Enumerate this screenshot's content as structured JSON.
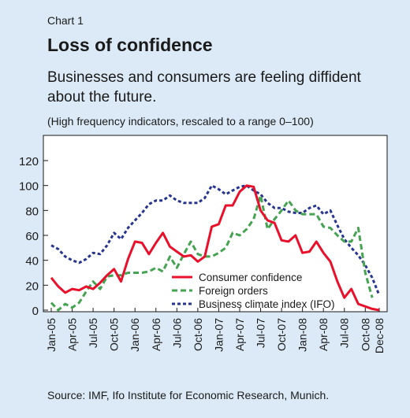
{
  "header": {
    "label": "Chart 1",
    "title": "Loss of confidence",
    "subtitle": "Businesses and consumers are feeling diffident about the future.",
    "note": "(High frequency indicators, rescaled to a range 0–100)"
  },
  "footer": {
    "source": "Source: IMF, Ifo Institute for Economic Research, Munich."
  },
  "colors": {
    "background": "#dbeaf6",
    "plot_bg": "#ffffff",
    "consumer": "#e8102a",
    "foreign": "#45a352",
    "ifo": "#27358f"
  },
  "chart_data": {
    "type": "line",
    "x": [
      "Jan-05",
      "Feb-05",
      "Mar-05",
      "Apr-05",
      "May-05",
      "Jun-05",
      "Jul-05",
      "Aug-05",
      "Sep-05",
      "Oct-05",
      "Nov-05",
      "Dec-05",
      "Jan-06",
      "Feb-06",
      "Mar-06",
      "Apr-06",
      "May-06",
      "Jun-06",
      "Jul-06",
      "Aug-06",
      "Sep-06",
      "Oct-06",
      "Nov-06",
      "Dec-06",
      "Jan-07",
      "Feb-07",
      "Mar-07",
      "Apr-07",
      "May-07",
      "Jun-07",
      "Jul-07",
      "Aug-07",
      "Sep-07",
      "Oct-07",
      "Nov-07",
      "Dec-07",
      "Jan-08",
      "Feb-08",
      "Mar-08",
      "Apr-08",
      "May-08",
      "Jun-08",
      "Jul-08",
      "Aug-08",
      "Sep-08",
      "Oct-08",
      "Nov-08",
      "Dec-08"
    ],
    "xticks": [
      "Jan-05",
      "Apr-05",
      "Jul-05",
      "Oct-05",
      "Jan-06",
      "Apr-06",
      "Jul-06",
      "Oct-06",
      "Jan-07",
      "Apr-07",
      "Jul-07",
      "Oct-07",
      "Jan-08",
      "Apr-08",
      "Jul-08",
      "Oct-08",
      "Dec-08"
    ],
    "yticks": [
      0,
      20,
      40,
      60,
      80,
      100,
      120
    ],
    "ylim": [
      0,
      120
    ],
    "grid": false,
    "legend_position": "bottom-right",
    "series": [
      {
        "name": "Consumer confidence",
        "color": "#e8102a",
        "dash": "solid",
        "values": [
          26,
          19,
          14,
          17,
          16,
          19,
          17,
          22,
          28,
          33,
          23,
          41,
          55,
          54,
          45,
          54,
          62,
          51,
          47,
          43,
          44,
          39,
          43,
          67,
          69,
          84,
          84,
          95,
          100,
          99,
          80,
          72,
          70,
          56,
          55,
          60,
          46,
          47,
          55,
          46,
          39,
          23,
          10,
          17,
          5,
          3,
          1,
          0
        ]
      },
      {
        "name": "Foreign orders",
        "color": "#45a352",
        "dash": "dashed",
        "values": [
          6,
          0,
          5,
          2,
          6,
          15,
          23,
          17,
          27,
          28,
          28,
          30,
          30,
          30,
          31,
          34,
          31,
          43,
          34,
          45,
          55,
          45,
          43,
          43,
          46,
          50,
          62,
          60,
          65,
          73,
          92,
          65,
          73,
          80,
          88,
          80,
          77,
          77,
          77,
          67,
          66,
          60,
          55,
          55,
          66,
          30,
          10,
          null
        ]
      },
      {
        "name": "Business climate index (IFO)",
        "color": "#27358f",
        "dash": "dotted",
        "values": [
          52,
          49,
          43,
          40,
          38,
          41,
          46,
          45,
          52,
          62,
          57,
          66,
          72,
          78,
          85,
          88,
          88,
          92,
          88,
          86,
          86,
          86,
          90,
          100,
          97,
          93,
          96,
          99,
          100,
          96,
          93,
          86,
          82,
          82,
          79,
          78,
          78,
          82,
          84,
          77,
          80,
          68,
          57,
          50,
          44,
          36,
          26,
          12
        ]
      }
    ]
  }
}
